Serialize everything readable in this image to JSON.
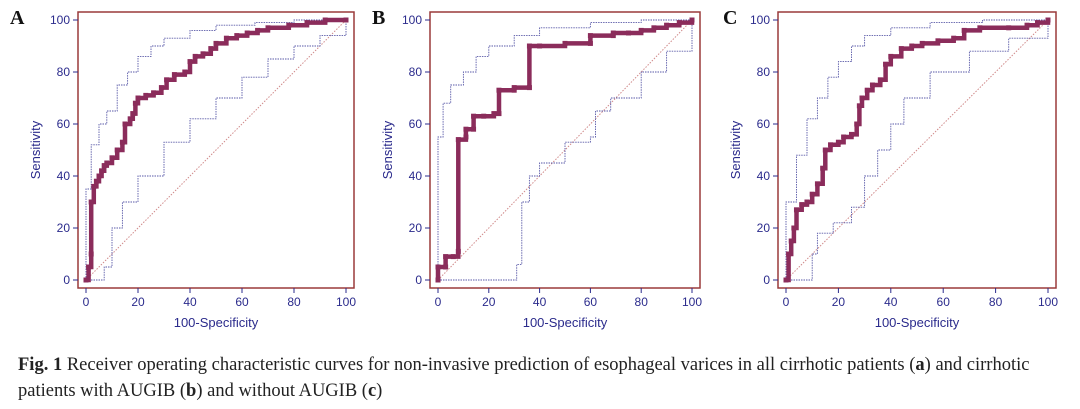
{
  "chart_data": [
    {
      "type": "line",
      "panel": "A",
      "xlabel": "100-Specificity",
      "ylabel": "Sensitivity",
      "xlim": [
        0,
        100
      ],
      "ylim": [
        0,
        100
      ],
      "xticks": [
        "0",
        "20",
        "40",
        "60",
        "80",
        "100"
      ],
      "yticks": [
        "0",
        "20",
        "40",
        "60",
        "80",
        "100"
      ],
      "roc": [
        [
          0,
          0
        ],
        [
          1,
          5
        ],
        [
          2,
          10
        ],
        [
          2,
          30
        ],
        [
          3,
          36
        ],
        [
          4,
          38
        ],
        [
          5,
          40
        ],
        [
          6,
          42
        ],
        [
          7,
          44
        ],
        [
          8,
          45
        ],
        [
          10,
          47
        ],
        [
          12,
          50
        ],
        [
          14,
          53
        ],
        [
          15,
          60
        ],
        [
          17,
          62
        ],
        [
          18,
          64
        ],
        [
          19,
          68
        ],
        [
          20,
          70
        ],
        [
          23,
          71
        ],
        [
          26,
          72
        ],
        [
          29,
          74
        ],
        [
          31,
          77
        ],
        [
          34,
          79
        ],
        [
          38,
          80
        ],
        [
          40,
          84
        ],
        [
          42,
          86
        ],
        [
          45,
          87
        ],
        [
          48,
          89
        ],
        [
          50,
          91
        ],
        [
          54,
          93
        ],
        [
          58,
          94
        ],
        [
          62,
          95
        ],
        [
          66,
          96
        ],
        [
          70,
          97
        ],
        [
          78,
          98
        ],
        [
          85,
          99
        ],
        [
          92,
          100
        ],
        [
          100,
          100
        ]
      ],
      "upper_ci": [
        [
          0,
          0
        ],
        [
          0,
          35
        ],
        [
          2,
          52
        ],
        [
          5,
          60
        ],
        [
          8,
          65
        ],
        [
          12,
          75
        ],
        [
          16,
          80
        ],
        [
          20,
          86
        ],
        [
          25,
          90
        ],
        [
          30,
          93
        ],
        [
          40,
          96
        ],
        [
          50,
          98
        ],
        [
          65,
          99
        ],
        [
          80,
          100
        ],
        [
          100,
          100
        ]
      ],
      "lower_ci": [
        [
          0,
          0
        ],
        [
          4,
          0
        ],
        [
          7,
          5
        ],
        [
          10,
          20
        ],
        [
          14,
          30
        ],
        [
          20,
          40
        ],
        [
          30,
          53
        ],
        [
          40,
          62
        ],
        [
          50,
          70
        ],
        [
          60,
          78
        ],
        [
          70,
          85
        ],
        [
          80,
          90
        ],
        [
          90,
          94
        ],
        [
          100,
          99
        ]
      ]
    },
    {
      "type": "line",
      "panel": "B",
      "xlabel": "100-Specificity",
      "ylabel": "Sensitivity",
      "xlim": [
        0,
        100
      ],
      "ylim": [
        0,
        100
      ],
      "xticks": [
        "0",
        "20",
        "40",
        "60",
        "80",
        "100"
      ],
      "yticks": [
        "0",
        "20",
        "40",
        "60",
        "80",
        "100"
      ],
      "roc": [
        [
          0,
          0
        ],
        [
          0,
          5
        ],
        [
          3,
          5
        ],
        [
          3,
          9
        ],
        [
          6,
          9
        ],
        [
          8,
          11
        ],
        [
          8,
          54
        ],
        [
          11,
          55
        ],
        [
          11,
          58
        ],
        [
          14,
          58
        ],
        [
          14,
          63
        ],
        [
          18,
          63
        ],
        [
          22,
          64
        ],
        [
          24,
          64
        ],
        [
          24,
          73
        ],
        [
          30,
          73
        ],
        [
          30,
          74
        ],
        [
          36,
          74
        ],
        [
          36,
          90
        ],
        [
          40,
          90
        ],
        [
          50,
          91
        ],
        [
          60,
          91
        ],
        [
          60,
          94
        ],
        [
          69,
          94
        ],
        [
          69,
          95
        ],
        [
          75,
          95
        ],
        [
          80,
          96
        ],
        [
          85,
          97
        ],
        [
          90,
          98
        ],
        [
          95,
          99
        ],
        [
          100,
          100
        ]
      ],
      "upper_ci": [
        [
          0,
          0
        ],
        [
          0,
          55
        ],
        [
          2,
          68
        ],
        [
          5,
          75
        ],
        [
          10,
          80
        ],
        [
          15,
          86
        ],
        [
          20,
          90
        ],
        [
          30,
          94
        ],
        [
          40,
          97
        ],
        [
          60,
          99
        ],
        [
          80,
          100
        ],
        [
          100,
          100
        ]
      ],
      "lower_ci": [
        [
          0,
          0
        ],
        [
          25,
          0
        ],
        [
          31,
          6
        ],
        [
          33,
          30
        ],
        [
          36,
          40
        ],
        [
          40,
          45
        ],
        [
          50,
          53
        ],
        [
          60,
          55
        ],
        [
          62,
          65
        ],
        [
          68,
          70
        ],
        [
          80,
          80
        ],
        [
          90,
          88
        ],
        [
          100,
          100
        ]
      ]
    },
    {
      "type": "line",
      "panel": "C",
      "xlabel": "100-Specificity",
      "ylabel": "Sensitivity",
      "xlim": [
        0,
        100
      ],
      "ylim": [
        0,
        100
      ],
      "xticks": [
        "0",
        "20",
        "40",
        "60",
        "80",
        "100"
      ],
      "yticks": [
        "0",
        "20",
        "40",
        "60",
        "80",
        "100"
      ],
      "roc": [
        [
          0,
          0
        ],
        [
          1,
          10
        ],
        [
          2,
          15
        ],
        [
          3,
          20
        ],
        [
          4,
          27
        ],
        [
          6,
          29
        ],
        [
          8,
          30
        ],
        [
          10,
          33
        ],
        [
          12,
          37
        ],
        [
          14,
          43
        ],
        [
          15,
          50
        ],
        [
          17,
          52
        ],
        [
          20,
          53
        ],
        [
          22,
          55
        ],
        [
          25,
          56
        ],
        [
          27,
          60
        ],
        [
          28,
          67
        ],
        [
          29,
          70
        ],
        [
          31,
          73
        ],
        [
          33,
          75
        ],
        [
          36,
          77
        ],
        [
          38,
          83
        ],
        [
          40,
          86
        ],
        [
          44,
          89
        ],
        [
          48,
          90
        ],
        [
          52,
          91
        ],
        [
          58,
          92
        ],
        [
          64,
          93
        ],
        [
          68,
          96
        ],
        [
          74,
          97
        ],
        [
          85,
          97
        ],
        [
          92,
          98
        ],
        [
          96,
          99
        ],
        [
          100,
          100
        ]
      ],
      "upper_ci": [
        [
          0,
          0
        ],
        [
          0,
          30
        ],
        [
          4,
          48
        ],
        [
          8,
          62
        ],
        [
          12,
          70
        ],
        [
          16,
          78
        ],
        [
          20,
          84
        ],
        [
          25,
          90
        ],
        [
          30,
          94
        ],
        [
          40,
          97
        ],
        [
          55,
          99
        ],
        [
          75,
          100
        ],
        [
          100,
          100
        ]
      ],
      "lower_ci": [
        [
          0,
          0
        ],
        [
          6,
          0
        ],
        [
          10,
          10
        ],
        [
          12,
          18
        ],
        [
          18,
          22
        ],
        [
          25,
          28
        ],
        [
          30,
          40
        ],
        [
          35,
          50
        ],
        [
          40,
          60
        ],
        [
          45,
          70
        ],
        [
          55,
          80
        ],
        [
          70,
          88
        ],
        [
          85,
          93
        ],
        [
          100,
          100
        ]
      ]
    }
  ],
  "caption": {
    "fig_label": "Fig. 1",
    "text_1": " Receiver operating characteristic curves for non-invasive prediction of esophageal varices in all cirrhotic patients (",
    "a": "a",
    "text_2": ") and cirrhotic patients with AUGIB (",
    "b": "b",
    "text_3": ") and without AUGIB (",
    "c": "c",
    "text_4": ")"
  },
  "colors": {
    "roc": "#8b2c5b",
    "ci": "#5a5aa8",
    "diag": "#d08a8a",
    "axis": "#2b2b8c",
    "frame": "#9a3a3a"
  }
}
